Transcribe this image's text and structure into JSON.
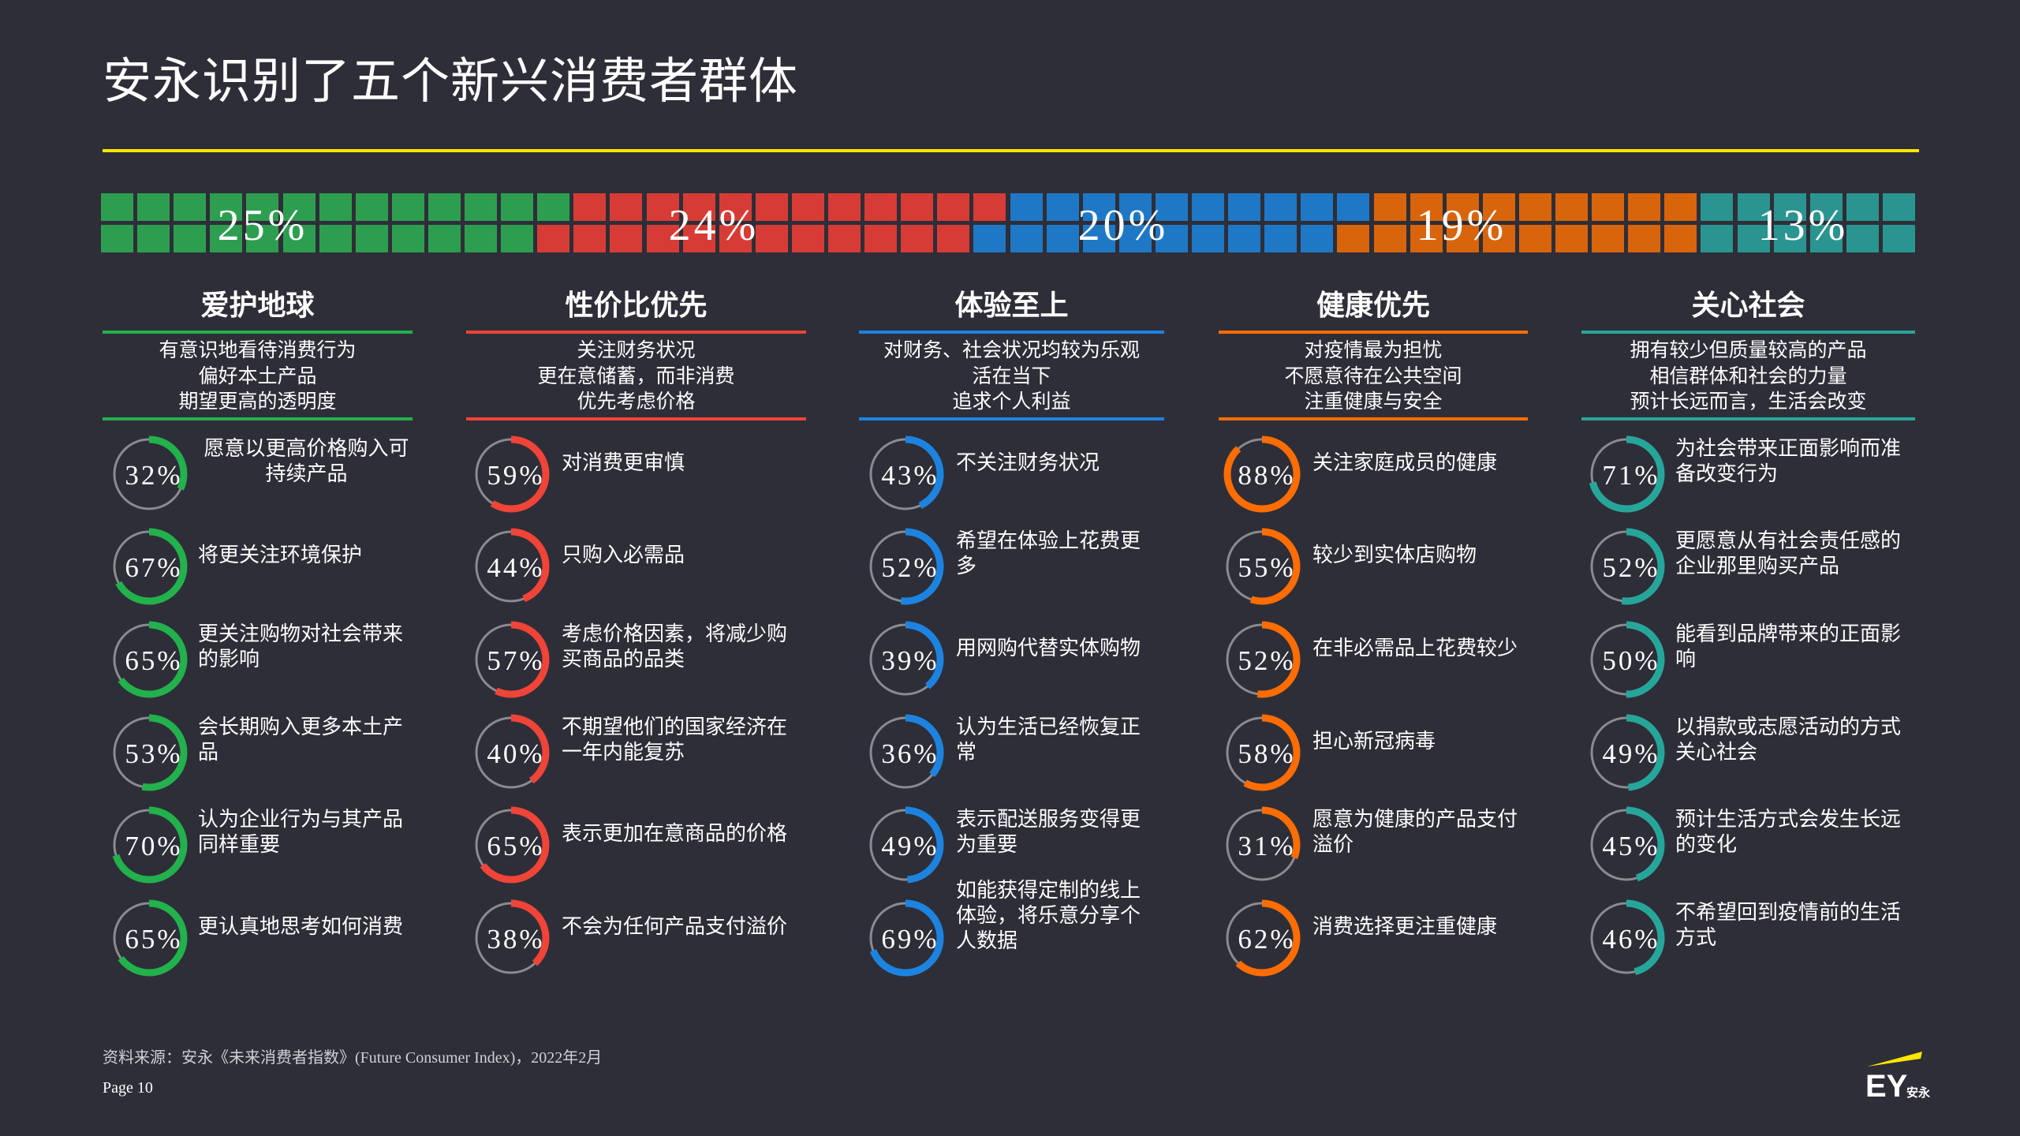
{
  "title": "安永识别了五个新兴消费者群体",
  "colors": {
    "background": "#2e2e38",
    "accent": "#ffe600",
    "ring_track": "#8a8a90"
  },
  "waffle": {
    "total_squares": 100,
    "segments": [
      {
        "label": "25%",
        "value": 25,
        "color": "#2d9e4f"
      },
      {
        "label": "24%",
        "value": 24,
        "color": "#d63c35"
      },
      {
        "label": "20%",
        "value": 20,
        "color": "#1f78c6"
      },
      {
        "label": "19%",
        "value": 19,
        "color": "#d8640b"
      },
      {
        "label": "13%",
        "value": 13,
        "color": "#2a9490"
      }
    ]
  },
  "groups": [
    {
      "name": "爱护地球",
      "color": "#22b14c",
      "desc": "有意识地看待消费行为\n偏好本土产品\n期望更高的透明度",
      "items": [
        {
          "pct": "32%",
          "value": 32,
          "text": "愿意以更高价格购入可\n持续产品",
          "center": true
        },
        {
          "pct": "67%",
          "value": 67,
          "text": "将更关注环境保护"
        },
        {
          "pct": "65%",
          "value": 65,
          "text": "更关注购物对社会带来\n的影响"
        },
        {
          "pct": "53%",
          "value": 53,
          "text": "会长期购入更多本土产\n品"
        },
        {
          "pct": "70%",
          "value": 70,
          "text": "认为企业行为与其产品\n同样重要"
        },
        {
          "pct": "65%",
          "value": 65,
          "text": "更认真地思考如何消费"
        }
      ]
    },
    {
      "name": "性价比优先",
      "color": "#f04438",
      "desc": "关注财务状况\n更在意储蓄，而非消费\n优先考虑价格",
      "items": [
        {
          "pct": "59%",
          "value": 59,
          "text": "对消费更审慎"
        },
        {
          "pct": "44%",
          "value": 44,
          "text": "只购入必需品"
        },
        {
          "pct": "57%",
          "value": 57,
          "text": "考虑价格因素，将减少购\n买商品的品类"
        },
        {
          "pct": "40%",
          "value": 40,
          "text": "不期望他们的国家经济在\n一年内能复苏"
        },
        {
          "pct": "65%",
          "value": 65,
          "text": "表示更加在意商品的价格"
        },
        {
          "pct": "38%",
          "value": 38,
          "text": "不会为任何产品支付溢价"
        }
      ]
    },
    {
      "name": "体验至上",
      "color": "#1c84e0",
      "desc": "对财务、社会状况均较为乐观\n活在当下\n追求个人利益",
      "items": [
        {
          "pct": "43%",
          "value": 43,
          "text": "不关注财务状况"
        },
        {
          "pct": "52%",
          "value": 52,
          "text": "希望在体验上花费更\n多"
        },
        {
          "pct": "39%",
          "value": 39,
          "text": "用网购代替实体购物"
        },
        {
          "pct": "36%",
          "value": 36,
          "text": "认为生活已经恢复正\n常"
        },
        {
          "pct": "49%",
          "value": 49,
          "text": "表示配送服务变得更\n为重要"
        },
        {
          "pct": "69%",
          "value": 69,
          "text": "如能获得定制的线上\n体验，将乐意分享个\n人数据"
        }
      ]
    },
    {
      "name": "健康优先",
      "color": "#ff6d00",
      "desc": "对疫情最为担忧\n不愿意待在公共空间\n注重健康与安全",
      "items": [
        {
          "pct": "88%",
          "value": 88,
          "text": "关注家庭成员的健康"
        },
        {
          "pct": "55%",
          "value": 55,
          "text": "较少到实体店购物"
        },
        {
          "pct": "52%",
          "value": 52,
          "text": "在非必需品上花费较少"
        },
        {
          "pct": "58%",
          "value": 58,
          "text": "担心新冠病毒"
        },
        {
          "pct": "31%",
          "value": 31,
          "text": "愿意为健康的产品支付\n溢价"
        },
        {
          "pct": "62%",
          "value": 62,
          "text": "消费选择更注重健康"
        }
      ]
    },
    {
      "name": "关心社会",
      "color": "#26a69a",
      "desc": "拥有较少但质量较高的产品\n相信群体和社会的力量\n预计长远而言，生活会改变",
      "items": [
        {
          "pct": "71%",
          "value": 71,
          "text": "为社会带来正面影响而准\n备改变行为"
        },
        {
          "pct": "52%",
          "value": 52,
          "text": "更愿意从有社会责任感的\n企业那里购买产品"
        },
        {
          "pct": "50%",
          "value": 50,
          "text": "能看到品牌带来的正面影\n响"
        },
        {
          "pct": "49%",
          "value": 49,
          "text": "以捐款或志愿活动的方式\n关心社会"
        },
        {
          "pct": "45%",
          "value": 45,
          "text": "预计生活方式会发生长远\n的变化"
        },
        {
          "pct": "46%",
          "value": 46,
          "text": "不希望回到疫情前的生活\n方式"
        }
      ]
    }
  ],
  "footer": {
    "source": "资料来源：安永《未来消费者指数》(Future Consumer Index)，2022年2月",
    "page": "Page 10",
    "logo_text": "EY安永"
  }
}
